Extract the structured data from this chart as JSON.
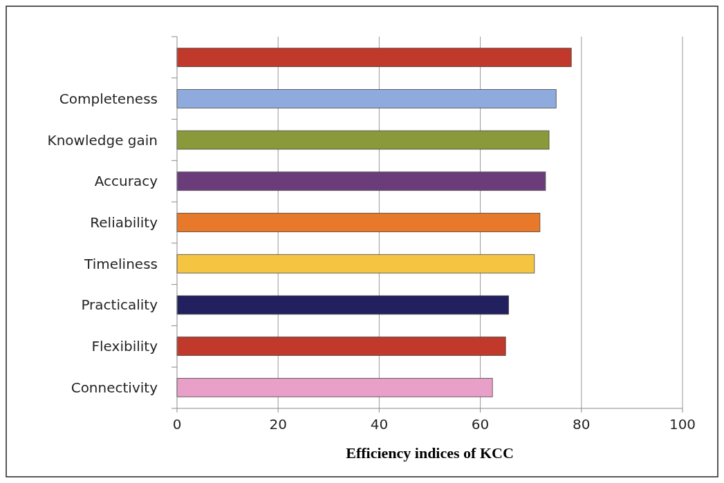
{
  "chart_data": {
    "type": "bar",
    "orientation": "horizontal",
    "xlabel": "Efficiency indices of KCC",
    "categories": [
      null,
      "Completeness",
      "Knowledge gain",
      "Accuracy",
      "Reliability",
      "Timeliness",
      "Practicality",
      "Flexibility",
      "Connectivity"
    ],
    "values": [
      78,
      75,
      73.6,
      72.9,
      71.8,
      70.7,
      65.6,
      65,
      62.4
    ],
    "colors": [
      "#c0392b",
      "#8faadc",
      "#8a9a3a",
      "#6a3d7a",
      "#e8782a",
      "#f5c542",
      "#232060",
      "#c0392b",
      "#e9a0c8"
    ],
    "xlim": [
      0,
      100
    ],
    "xticks": [
      0,
      20,
      40,
      60,
      80,
      100
    ],
    "grid": "x"
  }
}
